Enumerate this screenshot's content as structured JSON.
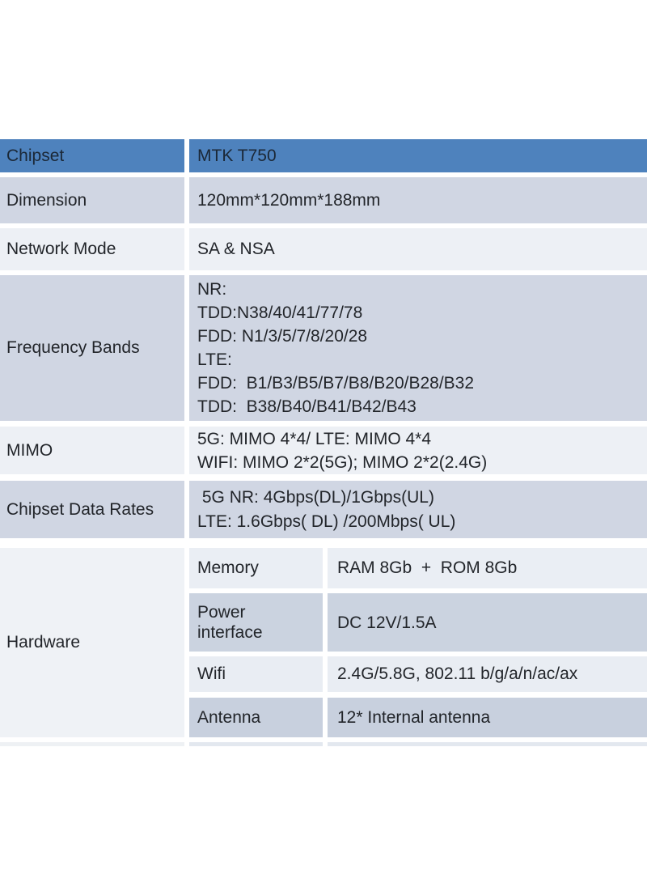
{
  "colors": {
    "header_bg": "#4e82bd",
    "header_text": "#1b2837",
    "row_periwinkle_bg": "#d0d6e3",
    "row_light_bg": "#edf0f5",
    "hardware_cell_bg": "#eff2f6",
    "sub_row_dark_bg": "#cbd3e0",
    "sub_row_light_bg": "#eaeef4",
    "body_text": "#22252a",
    "page_bg": "#ffffff"
  },
  "table": {
    "rows": [
      {
        "label": "Chipset",
        "value": "MTK T750"
      },
      {
        "label": "Dimension",
        "value": "120mm*120mm*188mm"
      },
      {
        "label": "Network Mode",
        "value": "SA & NSA"
      },
      {
        "label": "Frequency Bands",
        "value": "NR:\nTDD:N38/40/41/77/78\nFDD: N1/3/5/7/8/20/28\nLTE:\nFDD:  B1/B3/B5/B7/B8/B20/B28/B32\nTDD:  B38/B40/B41/B42/B43"
      },
      {
        "label": "MIMO",
        "value": "5G: MIMO 4*4/ LTE: MIMO 4*4\nWIFI: MIMO 2*2(5G); MIMO 2*2(2.4G)"
      },
      {
        "label": "Chipset Data Rates",
        "value": " 5G NR: 4Gbps(DL)/1Gbps(UL)\nLTE: 1.6Gbps( DL) /200Mbps( UL)"
      }
    ],
    "hardware": {
      "label": "Hardware",
      "rows": [
        {
          "label": "Memory",
          "value": "RAM 8Gb  +  ROM 8Gb"
        },
        {
          "label": "Power\ninterface",
          "value": "DC 12V/1.5A"
        },
        {
          "label": "Wifi",
          "value": "2.4G/5.8G, 802.11 b/g/a/n/ac/ax"
        },
        {
          "label": "Antenna",
          "value": "12* Internal antenna"
        }
      ]
    }
  }
}
